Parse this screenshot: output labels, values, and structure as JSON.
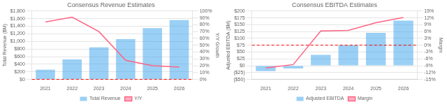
{
  "chart_data": [
    {
      "type": "bar",
      "title": "Consensus Revenue Estimates",
      "ylabel": "Total Revenue ($M)",
      "y2label": "Y/Y Growth",
      "categories": [
        "2021",
        "2022",
        "2023",
        "2024",
        "2025",
        "2026"
      ],
      "series": [
        {
          "name": "Total Revenue",
          "axis": "y",
          "values": [
            255,
            527,
            845,
            1060,
            1350,
            1560
          ]
        },
        {
          "name": "Y/Y",
          "type": "line",
          "axis": "y2",
          "values": [
            0.84,
            0.91,
            0.7,
            0.28,
            0.2,
            0.18
          ]
        }
      ],
      "ylim": [
        0,
        1800
      ],
      "yticks": [
        {
          "value": 0,
          "label": "$0"
        },
        {
          "value": 200,
          "label": "$200"
        },
        {
          "value": 400,
          "label": "$400"
        },
        {
          "value": 600,
          "label": "$600"
        },
        {
          "value": 800,
          "label": "$800"
        },
        {
          "value": 1000,
          "label": "$1,000"
        },
        {
          "value": 1200,
          "label": "$1,200"
        },
        {
          "value": 1400,
          "label": "$1,400"
        },
        {
          "value": 1600,
          "label": "$1,600"
        },
        {
          "value": 1800,
          "label": "$1,800"
        }
      ],
      "y2lim": [
        0.0,
        1.0
      ],
      "y2ticks": [
        {
          "value": 0.0,
          "label": "0%"
        },
        {
          "value": 0.1,
          "label": "10%"
        },
        {
          "value": 0.2,
          "label": "20%"
        },
        {
          "value": 0.3,
          "label": "30%"
        },
        {
          "value": 0.4,
          "label": "40%"
        },
        {
          "value": 0.5,
          "label": "50%"
        },
        {
          "value": 0.6,
          "label": "60%"
        },
        {
          "value": 0.7,
          "label": "70%"
        },
        {
          "value": 0.8,
          "label": "80%"
        },
        {
          "value": 0.9,
          "label": "90%"
        },
        {
          "value": 1.0,
          "label": "100%"
        }
      ],
      "reference_lines": [
        {
          "axis": "y2",
          "value": 0.0,
          "color": "#ff0000",
          "line_style": "dashed"
        }
      ],
      "grid": true,
      "legend": "bottom"
    },
    {
      "type": "bar",
      "title": "Consensus EBITDA Estimates",
      "ylabel": "Adjusted EBITDA ($M)",
      "y2label": "Margin",
      "categories": [
        "2021",
        "2022",
        "2023",
        "2024",
        "2025",
        "2026"
      ],
      "series": [
        {
          "name": "Adjusted EBITDA",
          "axis": "y",
          "values": [
            -20,
            -10,
            40,
            75,
            120,
            165
          ]
        },
        {
          "name": "Margin",
          "type": "line",
          "axis": "y2",
          "values": [
            -0.1,
            -0.085,
            0.063,
            0.065,
            0.099,
            0.122
          ]
        }
      ],
      "ylim": [
        -50,
        200
      ],
      "yticks": [
        {
          "value": -50,
          "label": "($50)"
        },
        {
          "value": -25,
          "label": "($25)"
        },
        {
          "value": 0,
          "label": "$0"
        },
        {
          "value": 25,
          "label": "$25"
        },
        {
          "value": 50,
          "label": "$50"
        },
        {
          "value": 75,
          "label": "$75"
        },
        {
          "value": 100,
          "label": "$100"
        },
        {
          "value": 125,
          "label": "$125"
        },
        {
          "value": 150,
          "label": "$150"
        },
        {
          "value": 175,
          "label": "$175"
        },
        {
          "value": 200,
          "label": "$200"
        }
      ],
      "y2lim": [
        -0.15,
        0.15
      ],
      "y2ticks": [
        {
          "value": -0.15,
          "label": "-15%"
        },
        {
          "value": -0.12,
          "label": "-12%"
        },
        {
          "value": -0.09,
          "label": "-9%"
        },
        {
          "value": -0.06,
          "label": "-6%"
        },
        {
          "value": -0.03,
          "label": "-3%"
        },
        {
          "value": 0.0,
          "label": "0%"
        },
        {
          "value": 0.03,
          "label": "3%"
        },
        {
          "value": 0.06,
          "label": "6%"
        },
        {
          "value": 0.09,
          "label": "9%"
        },
        {
          "value": 0.12,
          "label": "12%"
        },
        {
          "value": 0.15,
          "label": "15%"
        }
      ],
      "reference_lines": [
        {
          "axis": "y2",
          "value": 0.0,
          "color": "#ff0000",
          "line_style": "dashed"
        }
      ],
      "grid": true,
      "legend": "bottom"
    }
  ]
}
